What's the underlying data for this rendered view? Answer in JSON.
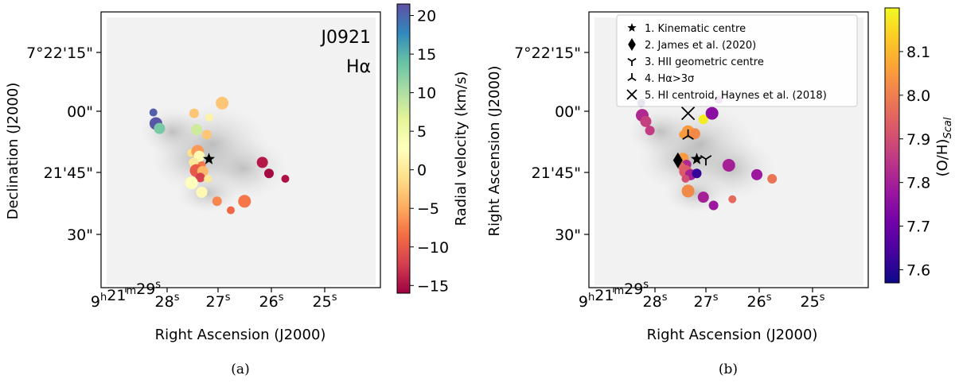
{
  "chart_data": [
    {
      "type": "scatter",
      "panel_caption": "(a)",
      "annotation_lines": [
        "J0921",
        "Hα"
      ],
      "xlabel": "Right Ascension (J2000)",
      "ylabel": "Declination (J2000)",
      "x_ticks": [
        "9h21m29s",
        "28s",
        "27s",
        "26s",
        "25s"
      ],
      "y_ticks": [
        "7°22'15\"",
        "00\"",
        "21'45\"",
        "30\""
      ],
      "colorbar": {
        "label": "Radial velocity (km/s)",
        "range": [
          -16,
          21.5
        ],
        "ticks": [
          "20",
          "15",
          "10",
          "5",
          "0",
          "−5",
          "−10",
          "−15"
        ],
        "colormap": [
          "#9e0142",
          "#d53e4f",
          "#f46d43",
          "#fdae61",
          "#fee08b",
          "#ffffbf",
          "#e6f598",
          "#abdda4",
          "#66c2a5",
          "#3288bd",
          "#5e4fa2"
        ]
      },
      "points": [
        {
          "ra": 28.27,
          "dec": 59.7,
          "v": 20.5
        },
        {
          "ra": 28.22,
          "dec": 57.0,
          "v": 21.0
        },
        {
          "ra": 28.15,
          "dec": 55.8,
          "v": 13.0
        },
        {
          "ra": 27.47,
          "dec": 59.5,
          "v": -3.0
        },
        {
          "ra": 27.17,
          "dec": 58.5,
          "v": 1.0
        },
        {
          "ra": 26.92,
          "dec": 62.0,
          "v": -3.0
        },
        {
          "ra": 27.42,
          "dec": 55.5,
          "v": 8.0
        },
        {
          "ra": 27.22,
          "dec": 54.3,
          "v": -3.0
        },
        {
          "ra": 27.53,
          "dec": 49.8,
          "v": -1.0
        },
        {
          "ra": 27.4,
          "dec": 50.2,
          "v": -6.0
        },
        {
          "ra": 27.37,
          "dec": 49.0,
          "v": 2.0
        },
        {
          "ra": 27.48,
          "dec": 47.5,
          "v": 0.0
        },
        {
          "ra": 27.32,
          "dec": 46.8,
          "v": -8.0
        },
        {
          "ra": 27.43,
          "dec": 45.5,
          "v": -10.0
        },
        {
          "ra": 27.3,
          "dec": 45.3,
          "v": -4.0
        },
        {
          "ra": 27.35,
          "dec": 43.8,
          "v": -12.0
        },
        {
          "ra": 27.2,
          "dec": 43.5,
          "v": 0.0
        },
        {
          "ra": 27.52,
          "dec": 42.5,
          "v": 3.0
        },
        {
          "ra": 27.32,
          "dec": 40.2,
          "v": 2.0
        },
        {
          "ra": 27.02,
          "dec": 38.0,
          "v": -7.0
        },
        {
          "ra": 26.75,
          "dec": 35.8,
          "v": -9.0
        },
        {
          "ra": 26.48,
          "dec": 38.0,
          "v": -8.0
        },
        {
          "ra": 26.13,
          "dec": 47.5,
          "v": -14.5
        },
        {
          "ra": 26.0,
          "dec": 44.8,
          "v": -15.5
        },
        {
          "ra": 25.68,
          "dec": 43.5,
          "v": -15.0
        }
      ]
    },
    {
      "type": "scatter",
      "panel_caption": "(b)",
      "xlabel": "Right Ascension (J2000)",
      "ylabel": "Right Ascension (J2000)",
      "x_ticks": [
        "9h21m29s",
        "28s",
        "27s",
        "26s",
        "25s"
      ],
      "y_ticks": [
        "7°22'15\"",
        "00\"",
        "21'45\"",
        "30\""
      ],
      "legend_position": "top",
      "legend": [
        {
          "marker": "star",
          "label": "1. Kinematic centre"
        },
        {
          "marker": "diamond",
          "label": "2. James et al. (2020)"
        },
        {
          "marker": "tri_down",
          "label": "3. HII geometric centre"
        },
        {
          "marker": "tri_up",
          "label": "4. Hα>3σ"
        },
        {
          "marker": "x",
          "label": "5. HI centroid, Haynes et al. (2018)"
        }
      ],
      "centres": [
        {
          "marker": "star",
          "ra": 27.18,
          "dec": 48.3
        },
        {
          "marker": "diamond",
          "ra": 27.55,
          "dec": 48.0
        },
        {
          "marker": "tri_down",
          "ra": 27.0,
          "dec": 48.3
        },
        {
          "marker": "tri_up",
          "ra": 27.35,
          "dec": 54.0
        },
        {
          "marker": "x",
          "ra": 27.35,
          "dec": 59.5
        }
      ],
      "colorbar": {
        "label": "(O/H)Scal",
        "range": [
          7.57,
          8.2
        ],
        "ticks": [
          "8.1",
          "8.0",
          "7.9",
          "7.8",
          "7.7",
          "7.6"
        ],
        "colormap": [
          "#0d0887",
          "#46039f",
          "#7201a8",
          "#9c179e",
          "#bd3786",
          "#d8576b",
          "#ed7953",
          "#fb9f3a",
          "#fdca26",
          "#f0f921"
        ]
      },
      "points": [
        {
          "ra": 28.27,
          "dec": 62.0,
          "z": 7.6
        },
        {
          "ra": 28.25,
          "dec": 59.0,
          "z": 7.82
        },
        {
          "ra": 28.18,
          "dec": 57.5,
          "z": 7.87
        },
        {
          "ra": 28.1,
          "dec": 55.3,
          "z": 7.86
        },
        {
          "ra": 27.45,
          "dec": 54.3,
          "z": 8.05
        },
        {
          "ra": 27.35,
          "dec": 55.0,
          "z": 8.05
        },
        {
          "ra": 27.22,
          "dec": 54.5,
          "z": 8.02
        },
        {
          "ra": 27.05,
          "dec": 58.0,
          "z": 8.18
        },
        {
          "ra": 26.75,
          "dec": 62.8,
          "z": 7.72
        },
        {
          "ra": 26.88,
          "dec": 59.5,
          "z": 7.75
        },
        {
          "ra": 27.45,
          "dec": 48.5,
          "z": 8.05
        },
        {
          "ra": 27.38,
          "dec": 47.0,
          "z": 7.82
        },
        {
          "ra": 27.48,
          "dec": 46.5,
          "z": 7.95
        },
        {
          "ra": 27.4,
          "dec": 45.3,
          "z": 7.93
        },
        {
          "ra": 27.3,
          "dec": 44.5,
          "z": 7.8
        },
        {
          "ra": 27.18,
          "dec": 44.8,
          "z": 7.62
        },
        {
          "ra": 27.4,
          "dec": 43.5,
          "z": 7.9
        },
        {
          "ra": 27.35,
          "dec": 40.5,
          "z": 8.02
        },
        {
          "ra": 27.05,
          "dec": 39.0,
          "z": 7.8
        },
        {
          "ra": 26.85,
          "dec": 37.0,
          "z": 7.78
        },
        {
          "ra": 26.48,
          "dec": 38.5,
          "z": 7.96
        },
        {
          "ra": 26.55,
          "dec": 46.8,
          "z": 7.8
        },
        {
          "ra": 26.0,
          "dec": 44.5,
          "z": 7.78
        },
        {
          "ra": 25.7,
          "dec": 43.5,
          "z": 7.98
        }
      ]
    }
  ]
}
